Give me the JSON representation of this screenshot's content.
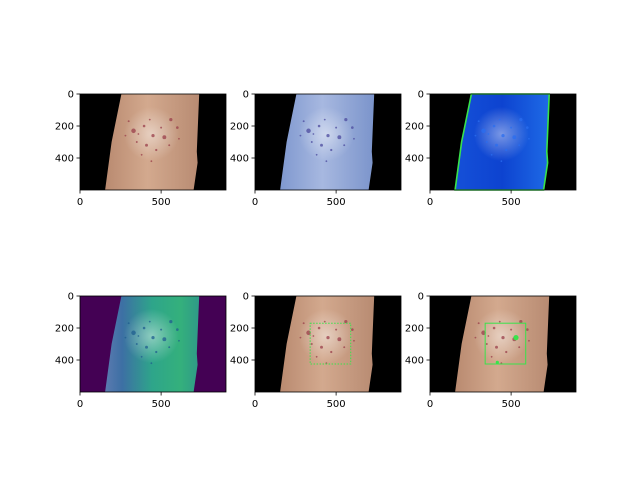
{
  "figure": {
    "panels": [
      {
        "name": "panel-original",
        "style": "original",
        "y_ticks": [
          "0",
          "200",
          "400"
        ],
        "x_ticks": [
          "0",
          "500"
        ],
        "has_box": false
      },
      {
        "name": "panel-bgr",
        "style": "bgr",
        "y_ticks": [
          "0",
          "200",
          "400"
        ],
        "x_ticks": [
          "0",
          "500"
        ],
        "has_box": false
      },
      {
        "name": "panel-hsv",
        "style": "hsv",
        "y_ticks": [
          "0",
          "200",
          "400"
        ],
        "x_ticks": [
          "0",
          "500"
        ],
        "has_box": false
      },
      {
        "name": "panel-grayscale-viridis",
        "style": "viridis",
        "y_ticks": [
          "0",
          "200",
          "400"
        ],
        "x_ticks": [
          "0",
          "500"
        ],
        "has_box": false
      },
      {
        "name": "panel-roi-box",
        "style": "original",
        "y_ticks": [
          "0",
          "200",
          "400"
        ],
        "x_ticks": [
          "0",
          "500"
        ],
        "has_box": true,
        "box_style": "dotted"
      },
      {
        "name": "panel-roi-detection",
        "style": "original",
        "y_ticks": [
          "0",
          "200",
          "400"
        ],
        "x_ticks": [
          "0",
          "500"
        ],
        "has_box": true,
        "box_style": "solid",
        "has_detections": true
      }
    ]
  },
  "colors": {
    "background": "#000000",
    "skin": "#c79a7e",
    "skin_edge": "#a87860",
    "lesion": "#9a3e4a",
    "bgr_skin": "#8aa3d6",
    "bgr_edge": "#6f86c4",
    "bgr_lesion": "#4b4a9e",
    "hsv_bg": "#0a3cd6",
    "hsv_mid": "#1a56e0",
    "hsv_edge": "#39e34b",
    "viridis_bg": "#440154",
    "viridis_left": "#3b518b",
    "viridis_mid": "#2ea387",
    "viridis_bright": "#37b978",
    "roi_box": "#39e34b"
  }
}
